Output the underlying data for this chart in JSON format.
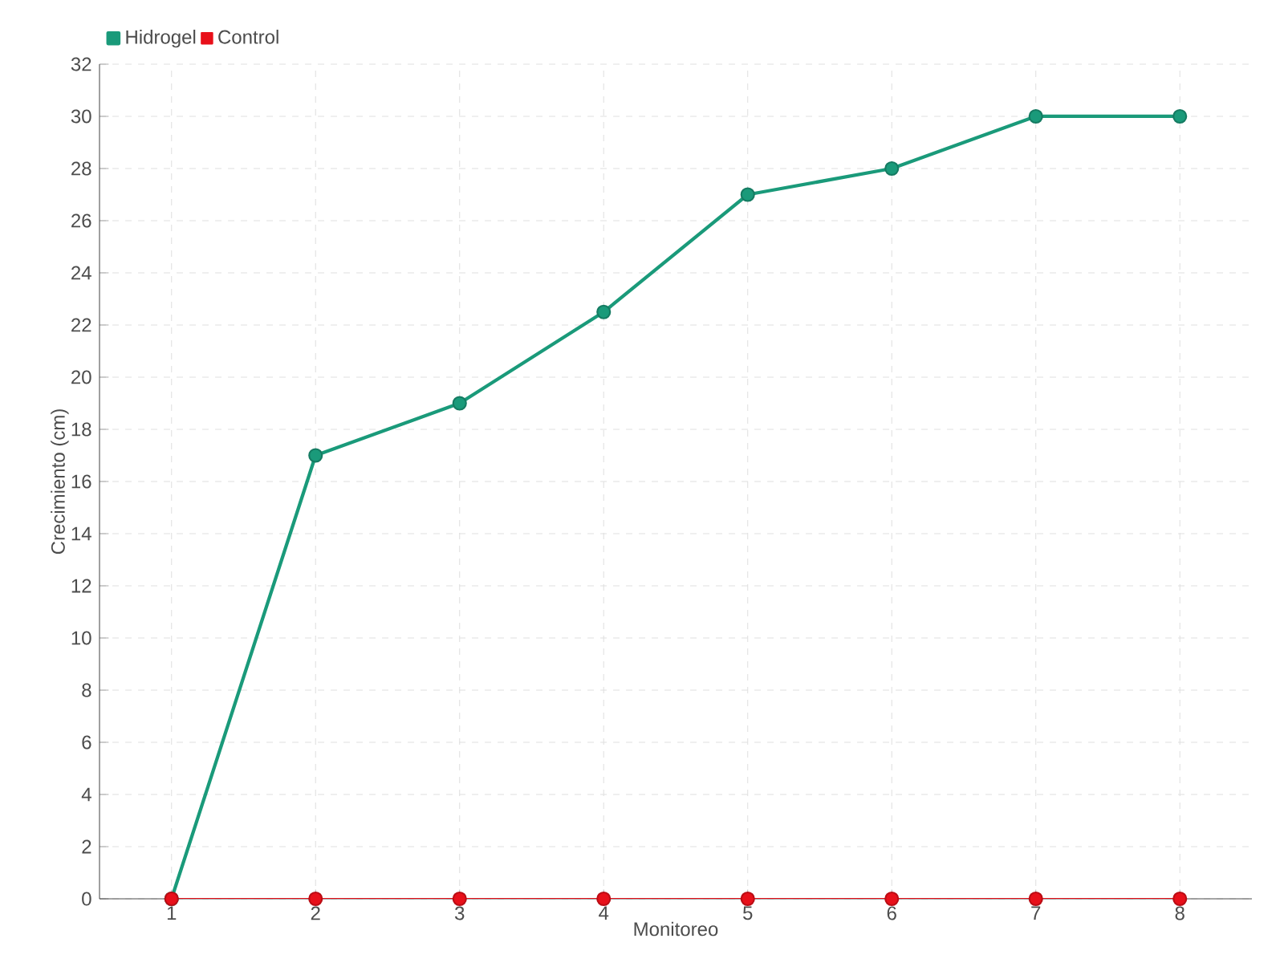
{
  "chart_data": {
    "type": "line",
    "xlabel": "Monitoreo",
    "ylabel": "Crecimiento (cm)",
    "categories": [
      "1",
      "2",
      "3",
      "4",
      "5",
      "6",
      "7",
      "8"
    ],
    "series": [
      {
        "name": "Hidrogel",
        "color": "#1a9a7a",
        "values": [
          0,
          17,
          19,
          22.5,
          27,
          28,
          30,
          30
        ]
      },
      {
        "name": "Control",
        "color": "#e8101a",
        "values": [
          0,
          0,
          0,
          0,
          0,
          0,
          0,
          0
        ]
      }
    ],
    "ylim": [
      0,
      32
    ],
    "yticks": [
      0,
      2,
      4,
      6,
      8,
      10,
      12,
      14,
      16,
      18,
      20,
      22,
      24,
      26,
      28,
      30,
      32
    ],
    "grid": true,
    "legend": "top left",
    "marker": "circle",
    "line_style": "solid"
  }
}
